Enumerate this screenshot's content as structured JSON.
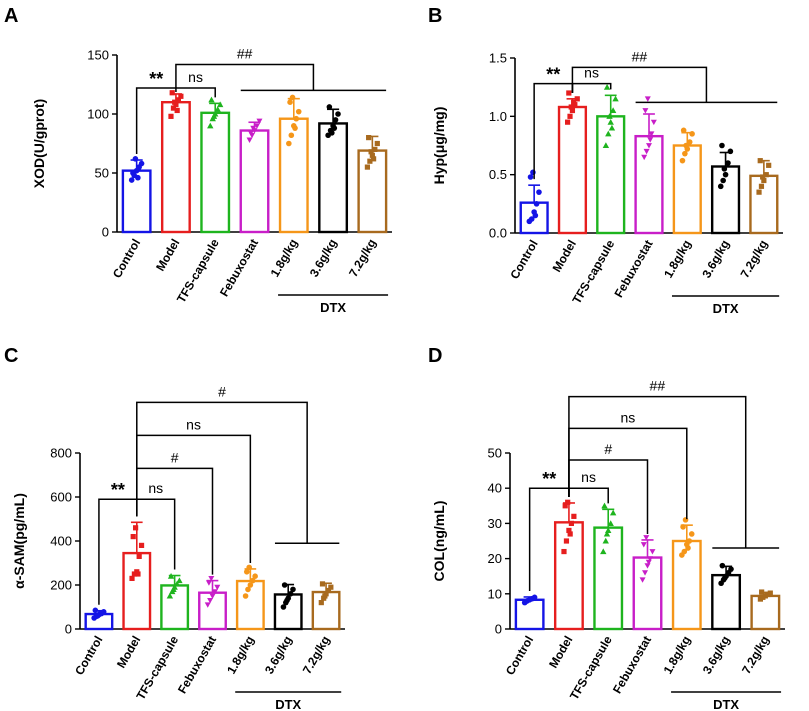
{
  "chart_data": [
    {
      "type": "bar",
      "panel": "A",
      "ylabel": "XOD(U/gprot)",
      "ylim": [
        0,
        150
      ],
      "yticks": [
        0,
        50,
        100,
        150
      ],
      "ytick_labels": [
        "0",
        "50",
        "100",
        "150"
      ],
      "categories": [
        "Control",
        "Model",
        "TFS-capsule",
        "Febuxostat",
        "1.8g/kg",
        "3.6g/kg",
        "7.2g/kg"
      ],
      "group_label": "DTX",
      "colors": [
        "#1414e6",
        "#e61e1e",
        "#1eb41e",
        "#c81ec8",
        "#f59619",
        "#000000",
        "#a86a1e"
      ],
      "values": [
        52,
        110,
        101,
        86,
        96,
        92,
        69
      ],
      "errors": [
        9,
        7,
        8,
        7,
        17,
        12,
        12
      ],
      "points": [
        [
          44,
          48,
          52,
          55,
          58,
          50,
          62,
          46
        ],
        [
          98,
          105,
          108,
          112,
          115,
          118,
          110,
          103
        ],
        [
          90,
          96,
          100,
          104,
          108,
          112,
          98
        ],
        [
          78,
          82,
          86,
          90,
          94,
          84,
          88
        ],
        [
          75,
          82,
          90,
          96,
          102,
          110,
          114,
          88
        ],
        [
          82,
          86,
          90,
          95,
          100,
          106,
          84,
          88
        ],
        [
          55,
          60,
          65,
          70,
          75,
          80,
          68,
          62
        ]
      ],
      "annotations": [
        {
          "text": "**",
          "from": 0,
          "to": 1,
          "level": 122
        },
        {
          "text": "ns",
          "from": 1,
          "to": 2,
          "level": 122
        },
        {
          "text": "##",
          "from": 1,
          "to": 4.5,
          "level": 142,
          "span": [
            3,
            6
          ],
          "span_level": 120
        }
      ]
    },
    {
      "type": "bar",
      "panel": "B",
      "ylabel": "Hyp(μg/mg)",
      "ylim": [
        0,
        1.5
      ],
      "yticks": [
        0,
        0.5,
        1.0,
        1.5
      ],
      "ytick_labels": [
        "0.0",
        "0.5",
        "1.0",
        "1.5"
      ],
      "categories": [
        "Control",
        "Model",
        "TFS-capsule",
        "Febuxostat",
        "1.8g/kg",
        "3.6g/kg",
        "7.2g/kg"
      ],
      "group_label": "DTX",
      "colors": [
        "#1414e6",
        "#e61e1e",
        "#1eb41e",
        "#c81ec8",
        "#f59619",
        "#000000",
        "#a86a1e"
      ],
      "values": [
        0.26,
        1.08,
        1.0,
        0.83,
        0.75,
        0.57,
        0.49
      ],
      "errors": [
        0.15,
        0.07,
        0.18,
        0.19,
        0.11,
        0.12,
        0.13
      ],
      "points": [
        [
          0.1,
          0.12,
          0.18,
          0.25,
          0.35,
          0.48,
          0.52,
          0.15
        ],
        [
          0.95,
          1.0,
          1.05,
          1.1,
          1.15,
          1.2,
          1.08,
          1.12
        ],
        [
          0.75,
          0.85,
          0.95,
          1.05,
          1.15,
          1.25,
          1.0,
          0.9
        ],
        [
          0.65,
          0.7,
          0.75,
          0.85,
          0.95,
          1.05,
          1.15,
          0.8
        ],
        [
          0.62,
          0.68,
          0.72,
          0.78,
          0.85,
          0.88,
          0.75
        ],
        [
          0.4,
          0.45,
          0.5,
          0.6,
          0.7,
          0.75,
          0.55
        ],
        [
          0.35,
          0.4,
          0.45,
          0.5,
          0.58,
          0.62,
          0.48
        ]
      ],
      "annotations": [
        {
          "text": "**",
          "from": 0,
          "to": 1,
          "level": 1.28
        },
        {
          "text": "ns",
          "from": 1,
          "to": 2,
          "level": 1.28
        },
        {
          "text": "##",
          "from": 1,
          "to": 4.5,
          "level": 1.42,
          "span": [
            3,
            6
          ],
          "span_level": 1.12
        }
      ]
    },
    {
      "type": "bar",
      "panel": "C",
      "ylabel": "α-SAM(pg/mL)",
      "ylim": [
        0,
        800
      ],
      "yticks": [
        0,
        200,
        400,
        600,
        800
      ],
      "ytick_labels": [
        "0",
        "200",
        "400",
        "600",
        "800"
      ],
      "categories": [
        "Control",
        "Model",
        "TFS-capsule",
        "Febuxostat",
        "1.8g/kg",
        "3.6g/kg",
        "7.2g/kg"
      ],
      "group_label": "DTX",
      "colors": [
        "#1414e6",
        "#e61e1e",
        "#1eb41e",
        "#c81ec8",
        "#f59619",
        "#000000",
        "#a86a1e"
      ],
      "values": [
        68,
        345,
        198,
        165,
        218,
        157,
        168
      ],
      "errors": [
        15,
        140,
        45,
        55,
        55,
        45,
        40
      ],
      "points": [
        [
          50,
          58,
          65,
          70,
          78,
          85,
          60
        ],
        [
          230,
          250,
          260,
          330,
          380,
          420,
          460,
          250
        ],
        [
          150,
          170,
          190,
          205,
          220,
          240,
          180
        ],
        [
          110,
          130,
          150,
          170,
          190,
          210,
          230
        ],
        [
          150,
          180,
          200,
          220,
          240,
          260,
          280
        ],
        [
          100,
          120,
          140,
          160,
          180,
          200,
          130
        ],
        [
          120,
          140,
          160,
          175,
          190,
          205,
          150
        ]
      ],
      "annotations": [
        {
          "text": "**",
          "from": 0,
          "to": 1,
          "level": 590
        },
        {
          "text": "ns",
          "from": 1,
          "to": 2,
          "level": 590
        },
        {
          "text": "#",
          "from": 1,
          "to": 3,
          "level": 730
        },
        {
          "text": "ns",
          "from": 1,
          "to": 4,
          "level": 880
        },
        {
          "text": "#",
          "from": 1,
          "to": 5.5,
          "level": 1030,
          "span": [
            5,
            6
          ],
          "span_level": 390
        }
      ]
    },
    {
      "type": "bar",
      "panel": "D",
      "ylabel": "COL(ng/mL)",
      "ylim": [
        0,
        50
      ],
      "yticks": [
        0,
        10,
        20,
        30,
        40,
        50
      ],
      "ytick_labels": [
        "0",
        "10",
        "20",
        "30",
        "40",
        "50"
      ],
      "categories": [
        "Control",
        "Model",
        "TFS-capsule",
        "Febuxostat",
        "1.8g/kg",
        "3.6g/kg",
        "7.2g/kg"
      ],
      "group_label": "DTX",
      "colors": [
        "#1414e6",
        "#e61e1e",
        "#1eb41e",
        "#c81ec8",
        "#f59619",
        "#000000",
        "#a86a1e"
      ],
      "values": [
        8.3,
        30.3,
        28.8,
        20.3,
        25.0,
        15.3,
        9.4
      ],
      "errors": [
        0.8,
        5.5,
        5.2,
        5.0,
        4.5,
        2.5,
        1.0
      ],
      "points": [
        [
          7.5,
          8.0,
          8.3,
          8.6,
          9.0,
          7.8
        ],
        [
          22,
          25,
          28,
          30,
          32,
          35,
          36,
          27
        ],
        [
          22,
          25,
          28,
          30,
          33,
          35,
          27
        ],
        [
          14,
          16,
          18,
          20,
          22,
          24,
          26,
          19
        ],
        [
          21,
          22,
          24,
          25,
          27,
          29,
          31,
          23
        ],
        [
          13,
          14,
          15,
          16,
          17,
          18,
          14.5
        ],
        [
          8.5,
          9.0,
          9.4,
          9.8,
          10.2,
          10.5
        ]
      ],
      "annotations": [
        {
          "text": "**",
          "from": 0,
          "to": 1,
          "level": 40
        },
        {
          "text": "ns",
          "from": 1,
          "to": 2,
          "level": 40
        },
        {
          "text": "#",
          "from": 1,
          "to": 3,
          "level": 48
        },
        {
          "text": "ns",
          "from": 1,
          "to": 4,
          "level": 57
        },
        {
          "text": "##",
          "from": 1,
          "to": 5.5,
          "level": 66,
          "span": [
            5,
            6
          ],
          "span_level": 23
        }
      ]
    }
  ]
}
